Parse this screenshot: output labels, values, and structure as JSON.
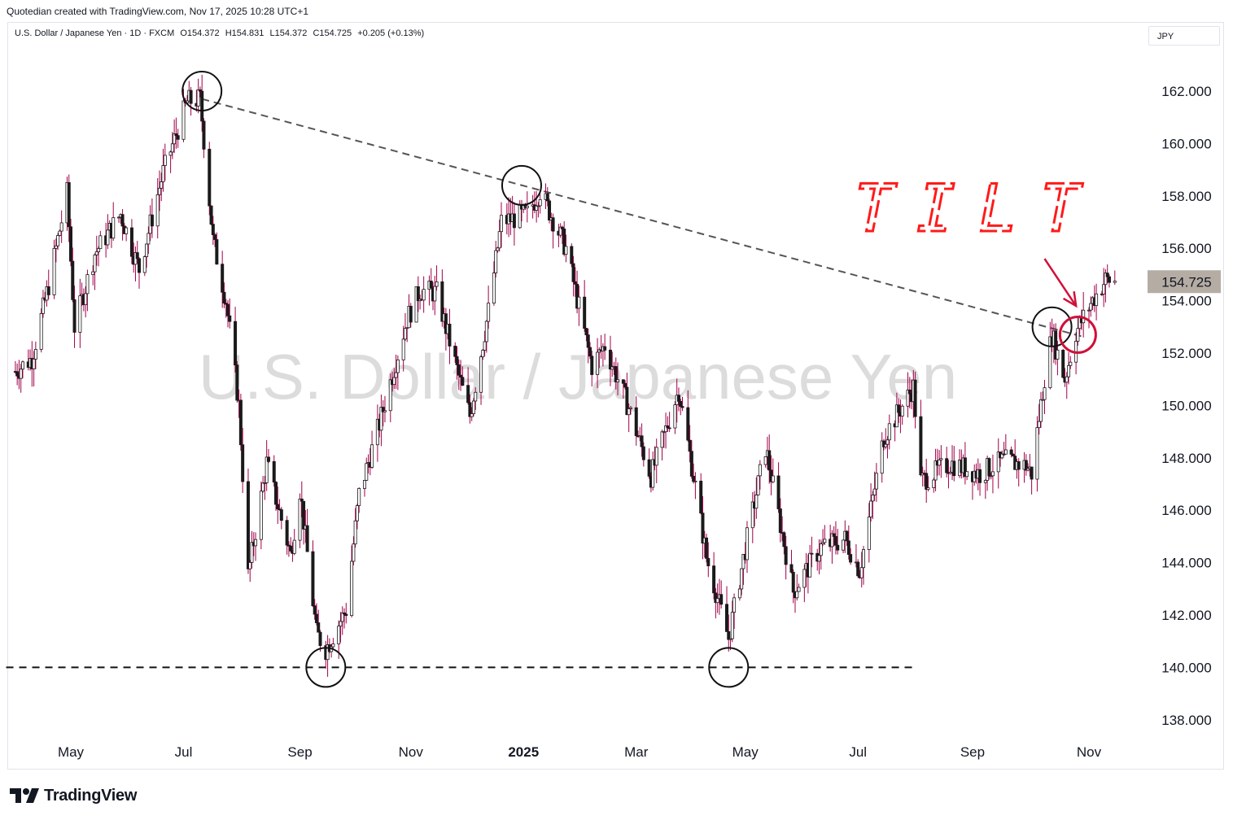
{
  "header": {
    "credit": "Quotedian created with TradingView.com, Nov 17, 2025 10:28 UTC+1"
  },
  "legend": {
    "symbol": "U.S. Dollar / Japanese Yen · 1D · FXCM",
    "open": "O154.372",
    "high": "H154.831",
    "low": "L154.372",
    "close": "C154.725",
    "change": "+0.205 (+0.13%)"
  },
  "currency_button": "JPY",
  "watermark": "U.S. Dollar / Japanese Yen",
  "annotation_text": "TILT",
  "footer": {
    "brand": "TradingView"
  },
  "colors": {
    "candle_up": "#ffffff",
    "candle_down": "#1a1a1a",
    "wick": "#a0004a",
    "annotation_red": "#d0103a",
    "tilt_red": "#ff1a1a",
    "price_label_bg": "#b5aca4"
  },
  "chart_data": {
    "type": "candlestick",
    "ylim": [
      137,
      164
    ],
    "y_ticks": [
      138,
      140,
      142,
      144,
      146,
      148,
      150,
      152,
      154,
      156,
      158,
      160,
      162
    ],
    "y_tick_labels": [
      "138.000",
      "140.000",
      "142.000",
      "144.000",
      "146.000",
      "148.000",
      "150.000",
      "152.000",
      "154.000",
      "156.000",
      "158.000",
      "160.000",
      "162.000"
    ],
    "x_ticks": [
      {
        "label": "May",
        "date": "2024-05-01"
      },
      {
        "label": "Jul",
        "date": "2024-07-01"
      },
      {
        "label": "Sep",
        "date": "2024-09-02"
      },
      {
        "label": "Nov",
        "date": "2024-11-01"
      },
      {
        "label": "2025",
        "date": "2025-01-01",
        "bold": true
      },
      {
        "label": "Mar",
        "date": "2025-03-03"
      },
      {
        "label": "May",
        "date": "2025-05-01"
      },
      {
        "label": "Jul",
        "date": "2025-07-01"
      },
      {
        "label": "Sep",
        "date": "2025-09-01"
      },
      {
        "label": "Nov",
        "date": "2025-11-03"
      }
    ],
    "last_price": 154.725,
    "last_price_label": "154.725",
    "price_path": [
      {
        "date": "2024-04-01",
        "close": 151.3
      },
      {
        "date": "2024-04-10",
        "close": 151.8
      },
      {
        "date": "2024-04-19",
        "close": 154.6
      },
      {
        "date": "2024-04-29",
        "close": 158.1
      },
      {
        "date": "2024-05-03",
        "close": 153.0
      },
      {
        "date": "2024-05-14",
        "close": 155.8
      },
      {
        "date": "2024-05-28",
        "close": 157.3
      },
      {
        "date": "2024-06-07",
        "close": 155.2
      },
      {
        "date": "2024-06-20",
        "close": 158.9
      },
      {
        "date": "2024-07-03",
        "close": 161.6
      },
      {
        "date": "2024-07-10",
        "close": 161.7
      },
      {
        "date": "2024-07-17",
        "close": 156.3
      },
      {
        "date": "2024-07-24",
        "close": 154.0
      },
      {
        "date": "2024-07-31",
        "close": 150.0
      },
      {
        "date": "2024-08-05",
        "close": 143.5
      },
      {
        "date": "2024-08-15",
        "close": 147.8
      },
      {
        "date": "2024-08-28",
        "close": 144.3
      },
      {
        "date": "2024-09-02",
        "close": 146.8
      },
      {
        "date": "2024-09-11",
        "close": 141.3
      },
      {
        "date": "2024-09-16",
        "close": 140.7
      },
      {
        "date": "2024-09-27",
        "close": 142.2
      },
      {
        "date": "2024-10-04",
        "close": 146.6
      },
      {
        "date": "2024-10-15",
        "close": 149.3
      },
      {
        "date": "2024-10-30",
        "close": 153.3
      },
      {
        "date": "2024-11-06",
        "close": 154.4
      },
      {
        "date": "2024-11-15",
        "close": 154.3
      },
      {
        "date": "2024-11-27",
        "close": 151.1
      },
      {
        "date": "2024-12-03",
        "close": 149.6
      },
      {
        "date": "2024-12-13",
        "close": 153.6
      },
      {
        "date": "2024-12-20",
        "close": 157.0
      },
      {
        "date": "2025-01-03",
        "close": 157.3
      },
      {
        "date": "2025-01-10",
        "close": 158.2
      },
      {
        "date": "2025-01-24",
        "close": 156.0
      },
      {
        "date": "2025-02-07",
        "close": 151.5
      },
      {
        "date": "2025-02-14",
        "close": 152.3
      },
      {
        "date": "2025-02-27",
        "close": 149.9
      },
      {
        "date": "2025-03-11",
        "close": 147.3
      },
      {
        "date": "2025-03-26",
        "close": 150.6
      },
      {
        "date": "2025-04-04",
        "close": 146.9
      },
      {
        "date": "2025-04-10",
        "close": 144.2
      },
      {
        "date": "2025-04-22",
        "close": 141.1
      },
      {
        "date": "2025-05-02",
        "close": 144.9
      },
      {
        "date": "2025-05-12",
        "close": 148.4
      },
      {
        "date": "2025-05-27",
        "close": 142.9
      },
      {
        "date": "2025-06-11",
        "close": 144.6
      },
      {
        "date": "2025-06-24",
        "close": 144.9
      },
      {
        "date": "2025-07-02",
        "close": 143.7
      },
      {
        "date": "2025-07-15",
        "close": 148.8
      },
      {
        "date": "2025-07-31",
        "close": 150.7
      },
      {
        "date": "2025-08-04",
        "close": 147.1
      },
      {
        "date": "2025-08-20",
        "close": 147.8
      },
      {
        "date": "2025-09-05",
        "close": 147.4
      },
      {
        "date": "2025-09-18",
        "close": 147.9
      },
      {
        "date": "2025-09-30",
        "close": 147.7
      },
      {
        "date": "2025-10-03",
        "close": 147.4
      },
      {
        "date": "2025-10-10",
        "close": 151.1
      },
      {
        "date": "2025-10-14",
        "close": 152.7
      },
      {
        "date": "2025-10-21",
        "close": 151.0
      },
      {
        "date": "2025-10-27",
        "close": 152.8
      },
      {
        "date": "2025-11-04",
        "close": 153.9
      },
      {
        "date": "2025-11-12",
        "close": 154.8
      },
      {
        "date": "2025-11-17",
        "close": 154.725
      }
    ],
    "trendline": {
      "style": "dashed",
      "from": {
        "date": "2024-07-11",
        "price": 161.7
      },
      "to": {
        "date": "2025-11-01",
        "price": 152.6
      }
    },
    "support_line": {
      "style": "dashed",
      "price": 140.0,
      "from_date": "2024-03-27",
      "to_date": "2025-08-01"
    },
    "marked_circles": [
      {
        "date": "2024-07-11",
        "price": 162.0
      },
      {
        "date": "2024-12-31",
        "price": 158.4
      },
      {
        "date": "2024-09-16",
        "price": 140.0
      },
      {
        "date": "2025-04-22",
        "price": 140.0
      },
      {
        "date": "2025-10-14",
        "price": 153.0
      },
      {
        "date": "2025-10-28",
        "price": 152.7,
        "color": "red"
      }
    ],
    "arrow": {
      "from": {
        "date": "2025-10-10",
        "price": 155.6
      },
      "to": {
        "date": "2025-10-27",
        "price": 153.8
      },
      "color": "red"
    }
  }
}
